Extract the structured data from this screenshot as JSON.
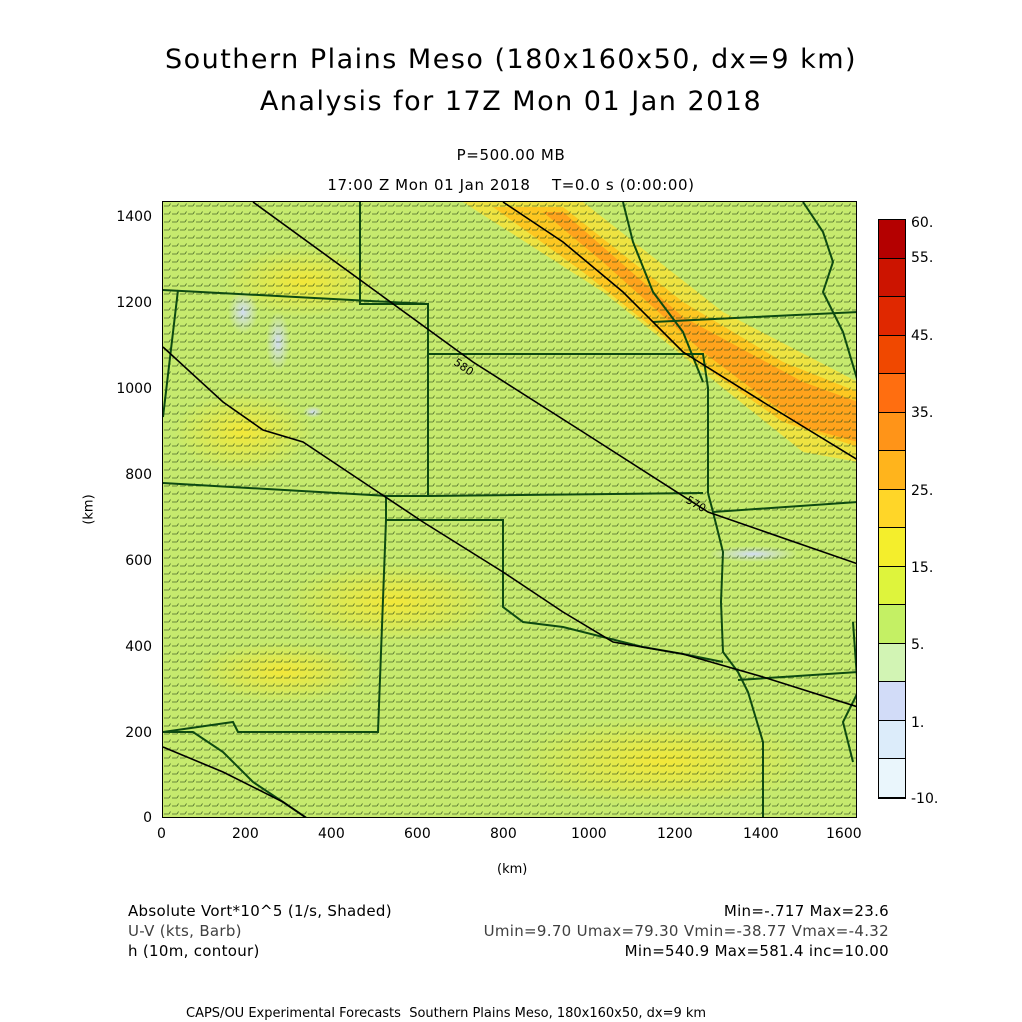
{
  "title_line1": "Southern Plains Meso (180x160x50, dx=9 km)",
  "title_line2": "Analysis for 17Z Mon 01 Jan 2018",
  "level": "P=500.00 MB",
  "time_line": "17:00 Z Mon 01 Jan 2018    T=0.0 s (0:00:00)",
  "x_axis_label": "(km)",
  "y_axis_label": "(km)",
  "x_ticks": [
    "0",
    "200",
    "400",
    "600",
    "800",
    "1000",
    "1200",
    "1400",
    "1600"
  ],
  "y_ticks": [
    "0",
    "200",
    "400",
    "600",
    "800",
    "1000",
    "1200",
    "1400"
  ],
  "contour_labels": [
    "580",
    "570"
  ],
  "colorbar": {
    "labels": [
      "60.",
      "55.",
      "45.",
      "35.",
      "25.",
      "15.",
      "5.",
      "1.",
      "-10."
    ],
    "colors": [
      "#b40000",
      "#cc1400",
      "#e02800",
      "#f04800",
      "#ff6e10",
      "#ff9418",
      "#ffb41c",
      "#ffd628",
      "#f4ee2c",
      "#def43c",
      "#c4f064",
      "#d2f4b4",
      "#d2dcf8",
      "#dcecfa",
      "#eaf6fc"
    ]
  },
  "legend": {
    "field1_name": "Absolute Vort*10^5 (1/s, Shaded)",
    "field1_stats": "Min=-.717 Max=23.6",
    "field2_name": "U-V (kts, Barb)",
    "field2_stats": "Umin=9.70 Umax=79.30 Vmin=-38.77 Vmax=-4.32",
    "field3_name": "h (10m, contour)",
    "field3_stats": "Min=540.9 Max=581.4 inc=10.00"
  },
  "footer": "CAPS/OU Experimental Forecasts  Southern Plains Meso, 180x160x50, dx=9 km"
}
